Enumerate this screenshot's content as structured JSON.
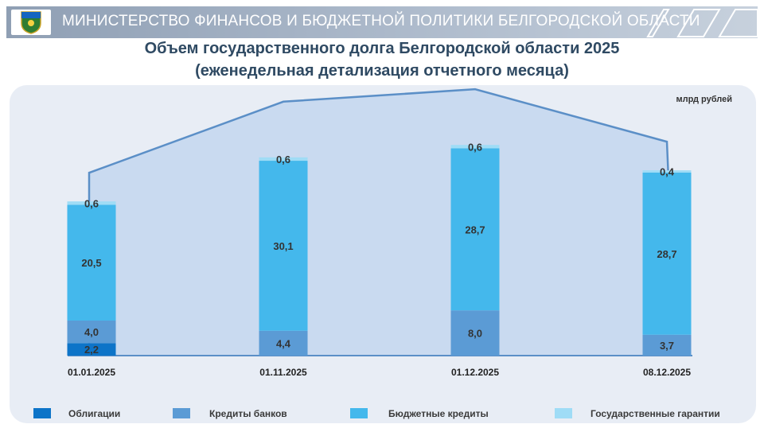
{
  "header": {
    "title": "МИНИСТЕРСТВО ФИНАНСОВ И БЮДЖЕТНОЙ ПОЛИТИКИ БЕЛГОРОДСКОЙ ОБЛАСТИ"
  },
  "title_line1": "Объем государственного долга Белгородской области 2025",
  "title_line2": "(еженедельная детализация отчетного месяца)",
  "colors": {
    "bonds": "#0d74c8",
    "bank_loans": "#5b9bd5",
    "budget_loans": "#44b8ec",
    "guarantees": "#9fdcf6",
    "outline": "#5b8fc7",
    "area": "#c9daf0"
  },
  "chart_data": {
    "type": "bar",
    "stacked": true,
    "unit_label": "млрд рублей",
    "categories": [
      "01.01.2025",
      "01.11.2025",
      "01.12.2025",
      "08.12.2025"
    ],
    "series": [
      {
        "name": "Облигации",
        "values": [
          2.2,
          0,
          0,
          0
        ],
        "labels": [
          "2,2",
          "",
          "",
          ""
        ]
      },
      {
        "name": "Кредиты банков",
        "values": [
          4.0,
          4.4,
          8.0,
          3.7
        ],
        "labels": [
          "4,0",
          "4,4",
          "8,0",
          "3,7"
        ]
      },
      {
        "name": "Бюджетные кредиты",
        "values": [
          20.5,
          30.1,
          28.7,
          28.7
        ],
        "labels": [
          "20,5",
          "30,1",
          "28,7",
          "28,7"
        ]
      },
      {
        "name": "Государственные гарантии",
        "values": [
          0.6,
          0.6,
          0.6,
          0.4
        ],
        "labels": [
          "0,6",
          "0,6",
          "0,6",
          "0,4"
        ]
      }
    ],
    "legend_position": "bottom",
    "grid": false
  }
}
